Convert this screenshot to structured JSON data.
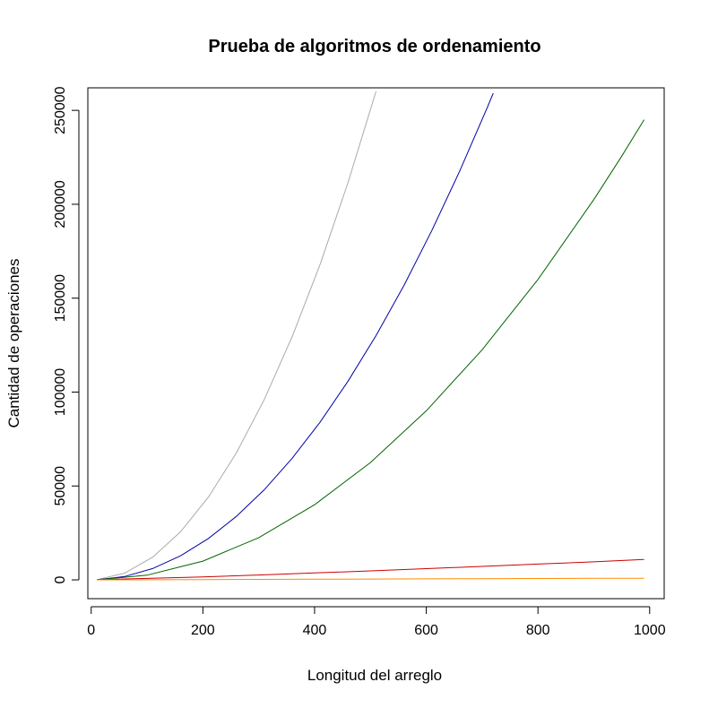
{
  "chart_data": {
    "type": "line",
    "title": "Prueba de algoritmos de ordenamiento",
    "xlabel": "Longitud del arreglo",
    "ylabel": "Cantidad de operaciones",
    "xlim": [
      -6,
      1026
    ],
    "ylim": [
      -10000,
      262000
    ],
    "xticks": [
      0,
      200,
      400,
      600,
      800,
      1000
    ],
    "yticks": [
      0,
      50000,
      100000,
      150000,
      200000,
      250000
    ],
    "xtick_labels": [
      "0",
      "200",
      "400",
      "600",
      "800",
      "1000"
    ],
    "ytick_labels": [
      "0",
      "50000",
      "100000",
      "150000",
      "200000",
      "250000"
    ],
    "grid": false,
    "legend": "none",
    "series": [
      {
        "color": "#aaaaaa",
        "x": [
          10,
          60,
          110,
          160,
          210,
          260,
          310,
          360,
          410,
          460,
          510
        ],
        "y": [
          100,
          3600,
          12100,
          25600,
          44100,
          67600,
          96100,
          129600,
          168100,
          211600,
          260100
        ]
      },
      {
        "color": "#0000aa",
        "x": [
          10,
          60,
          110,
          160,
          210,
          260,
          310,
          360,
          410,
          460,
          510,
          560,
          610,
          660,
          710,
          720
        ],
        "y": [
          50,
          1800,
          6050,
          12800,
          22050,
          33800,
          48050,
          64800,
          84050,
          105800,
          130050,
          156800,
          186050,
          217800,
          252050,
          259200
        ]
      },
      {
        "color": "#006400",
        "x": [
          10,
          100,
          200,
          300,
          400,
          500,
          600,
          700,
          800,
          900,
          950,
          990
        ],
        "y": [
          25,
          2500,
          10000,
          22500,
          40000,
          62500,
          90000,
          122500,
          160000,
          202500,
          225600,
          245000
        ]
      },
      {
        "color": "#cc0000",
        "x": [
          10,
          100,
          200,
          300,
          400,
          500,
          600,
          700,
          800,
          900,
          990
        ],
        "y": [
          50,
          800,
          1600,
          2600,
          3700,
          4800,
          6000,
          7200,
          8400,
          9600,
          10900
        ]
      },
      {
        "color": "#ff8c00",
        "x": [
          10,
          100,
          200,
          300,
          400,
          500,
          600,
          700,
          800,
          900,
          990
        ],
        "y": [
          10,
          90,
          180,
          270,
          360,
          450,
          540,
          630,
          720,
          810,
          890
        ]
      }
    ]
  }
}
